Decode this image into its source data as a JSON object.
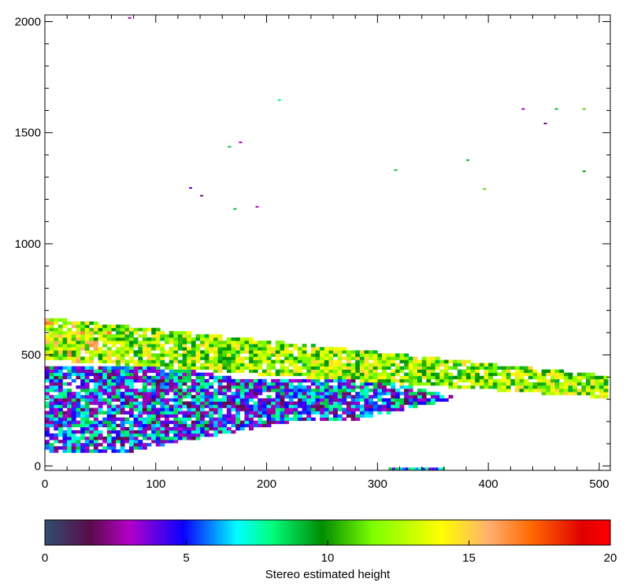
{
  "chart_data": [
    {
      "type": "heatmap",
      "title": "",
      "xlabel": "",
      "ylabel": "",
      "xlim": [
        0,
        510
      ],
      "ylim": [
        -20,
        2030
      ],
      "x_ticks": [
        "0",
        "100",
        "200",
        "300",
        "400",
        "500"
      ],
      "x_tick_values": [
        0,
        100,
        200,
        300,
        400,
        500
      ],
      "y_ticks": [
        "0",
        "500",
        "1000",
        "1500",
        "2000"
      ],
      "y_tick_values": [
        0,
        500,
        1000,
        1500,
        2000
      ],
      "grid": false,
      "regions": [
        {
          "name": "upper-band",
          "x_range": [
            0,
            505
          ],
          "y_top_left": 660,
          "y_top_right": 400,
          "y_bottom_left": 470,
          "y_bottom_right": 300,
          "dominant_value_range": [
            9,
            15
          ]
        },
        {
          "name": "lower-region",
          "x_range": [
            0,
            370
          ],
          "y_range": [
            60,
            440
          ],
          "dominant_value_range": [
            2,
            8
          ]
        }
      ],
      "sparse_points": [
        [
          75,
          2020,
          3
        ],
        [
          210,
          1650,
          8
        ],
        [
          175,
          1460,
          3
        ],
        [
          165,
          1440,
          9
        ],
        [
          430,
          1610,
          3
        ],
        [
          460,
          1610,
          9
        ],
        [
          485,
          1610,
          11
        ],
        [
          450,
          1545,
          2
        ],
        [
          380,
          1380,
          9
        ],
        [
          485,
          1330,
          10
        ],
        [
          315,
          1335,
          9
        ],
        [
          395,
          1250,
          11
        ],
        [
          140,
          1220,
          2
        ],
        [
          130,
          1255,
          4
        ],
        [
          170,
          1160,
          9
        ],
        [
          190,
          1170,
          3
        ]
      ]
    },
    {
      "type": "colorbar",
      "title": "Stereo estimated height",
      "ticks": [
        "0",
        "5",
        "10",
        "15",
        "20"
      ],
      "tick_values": [
        0,
        5,
        10,
        15,
        20
      ],
      "range": [
        0,
        20
      ],
      "colors": [
        "#2f4f70",
        "#5a0b4a",
        "#b400c8",
        "#0a00ff",
        "#00ffff",
        "#00ff80",
        "#008c00",
        "#7cff00",
        "#ffff00",
        "#ffb070",
        "#ff6a00",
        "#e00000",
        "#ff0000"
      ],
      "color_stops": [
        0,
        1.6,
        3,
        4.9,
        6.8,
        8,
        9.8,
        11.6,
        14,
        15.7,
        17.2,
        19,
        20
      ]
    }
  ]
}
